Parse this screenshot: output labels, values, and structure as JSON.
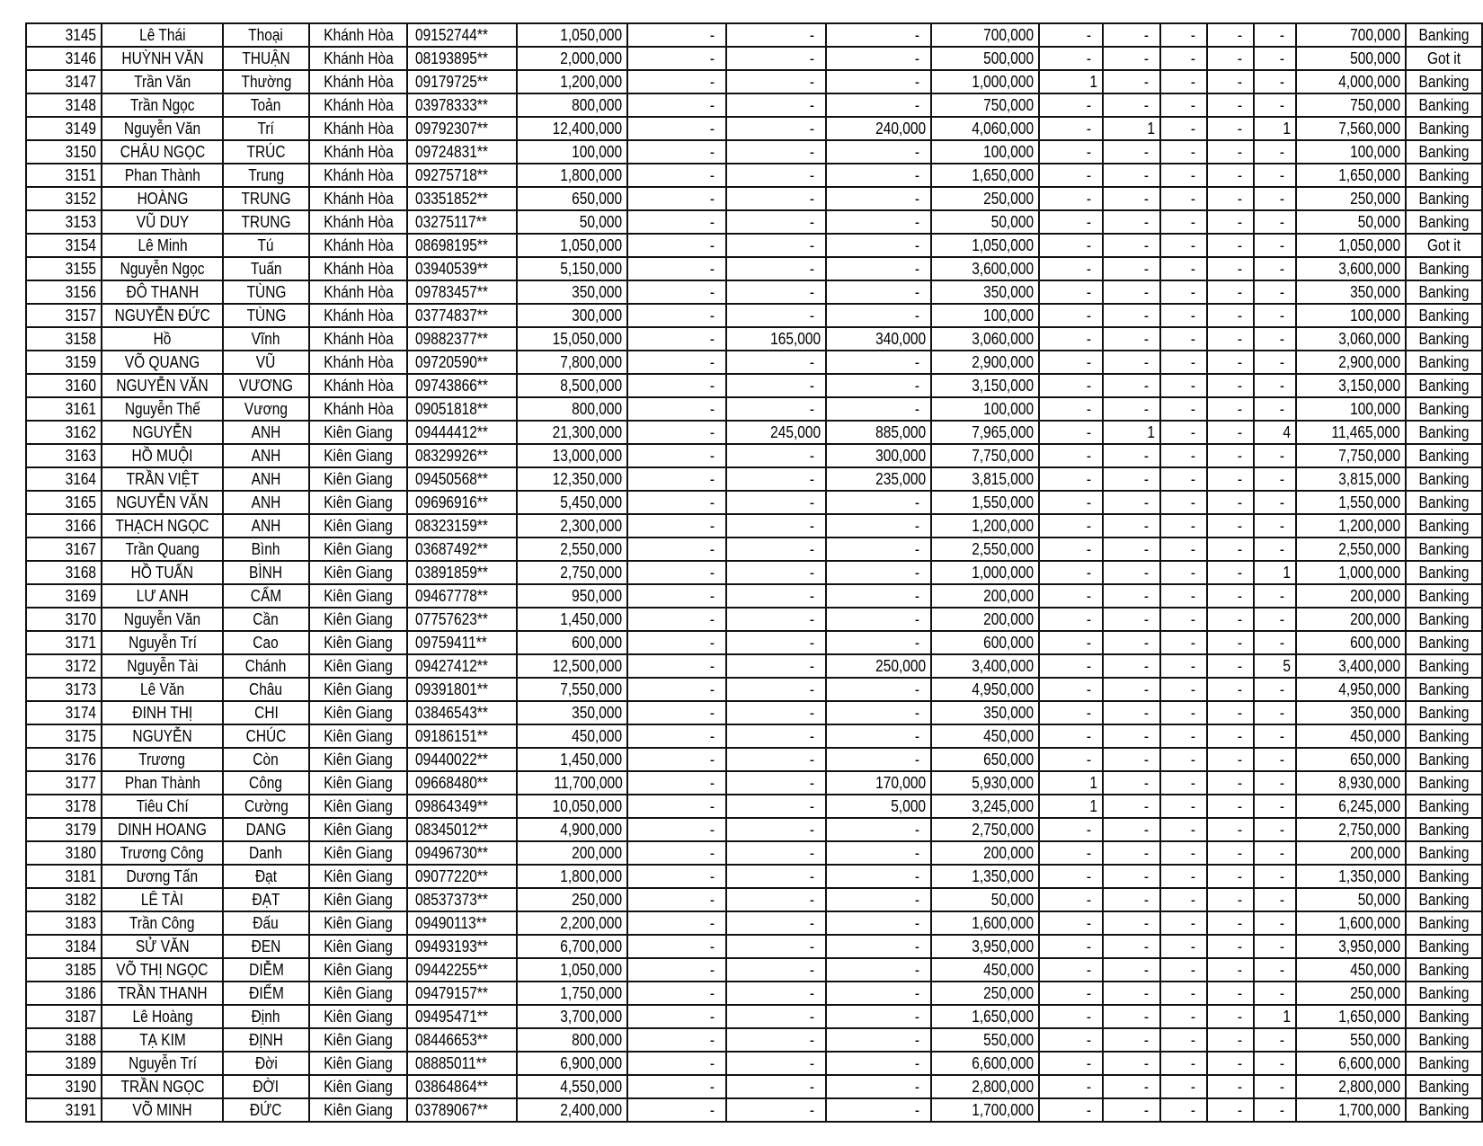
{
  "rows": [
    [
      "3145",
      "Lê Thái",
      "Thoại",
      "Khánh Hòa",
      "09152744**",
      "1,050,000",
      "-",
      "-",
      "-",
      "700,000",
      "-",
      "-",
      "-",
      "-",
      "-",
      "700,000",
      "Banking"
    ],
    [
      "3146",
      "HUỲNH VĂN",
      "THUẬN",
      "Khánh Hòa",
      "08193895**",
      "2,000,000",
      "-",
      "-",
      "-",
      "500,000",
      "-",
      "-",
      "-",
      "-",
      "-",
      "500,000",
      "Got it"
    ],
    [
      "3147",
      "Trần Văn",
      "Thường",
      "Khánh Hòa",
      "09179725**",
      "1,200,000",
      "-",
      "-",
      "-",
      "1,000,000",
      "1",
      "-",
      "-",
      "-",
      "-",
      "4,000,000",
      "Banking"
    ],
    [
      "3148",
      "Trần Ngọc",
      "Toản",
      "Khánh Hòa",
      "03978333**",
      "800,000",
      "-",
      "-",
      "-",
      "750,000",
      "-",
      "-",
      "-",
      "-",
      "-",
      "750,000",
      "Banking"
    ],
    [
      "3149",
      "Nguyễn Văn",
      "Trí",
      "Khánh Hòa",
      "09792307**",
      "12,400,000",
      "-",
      "-",
      "240,000",
      "4,060,000",
      "-",
      "1",
      "-",
      "-",
      "1",
      "7,560,000",
      "Banking"
    ],
    [
      "3150",
      "CHÂU NGỌC",
      "TRÚC",
      "Khánh Hòa",
      "09724831**",
      "100,000",
      "-",
      "-",
      "-",
      "100,000",
      "-",
      "-",
      "-",
      "-",
      "-",
      "100,000",
      "Banking"
    ],
    [
      "3151",
      "Phan Thành",
      "Trung",
      "Khánh Hòa",
      "09275718**",
      "1,800,000",
      "-",
      "-",
      "-",
      "1,650,000",
      "-",
      "-",
      "-",
      "-",
      "-",
      "1,650,000",
      "Banking"
    ],
    [
      "3152",
      "HOÀNG",
      "TRUNG",
      "Khánh Hòa",
      "03351852**",
      "650,000",
      "-",
      "-",
      "-",
      "250,000",
      "-",
      "-",
      "-",
      "-",
      "-",
      "250,000",
      "Banking"
    ],
    [
      "3153",
      "VŨ DUY",
      "TRUNG",
      "Khánh Hòa",
      "03275117**",
      "50,000",
      "-",
      "-",
      "-",
      "50,000",
      "-",
      "-",
      "-",
      "-",
      "-",
      "50,000",
      "Banking"
    ],
    [
      "3154",
      "Lê Minh",
      "Tú",
      "Khánh Hòa",
      "08698195**",
      "1,050,000",
      "-",
      "-",
      "-",
      "1,050,000",
      "-",
      "-",
      "-",
      "-",
      "-",
      "1,050,000",
      "Got it"
    ],
    [
      "3155",
      "Nguyễn Ngọc",
      "Tuấn",
      "Khánh Hòa",
      "03940539**",
      "5,150,000",
      "-",
      "-",
      "-",
      "3,600,000",
      "-",
      "-",
      "-",
      "-",
      "-",
      "3,600,000",
      "Banking"
    ],
    [
      "3156",
      "ĐÔ THANH",
      "TÙNG",
      "Khánh Hòa",
      "09783457**",
      "350,000",
      "-",
      "-",
      "-",
      "350,000",
      "-",
      "-",
      "-",
      "-",
      "-",
      "350,000",
      "Banking"
    ],
    [
      "3157",
      "NGUYỄN ĐỨC",
      "TÙNG",
      "Khánh Hòa",
      "03774837**",
      "300,000",
      "-",
      "-",
      "-",
      "100,000",
      "-",
      "-",
      "-",
      "-",
      "-",
      "100,000",
      "Banking"
    ],
    [
      "3158",
      "Hồ",
      "Vĩnh",
      "Khánh Hòa",
      "09882377**",
      "15,050,000",
      "-",
      "165,000",
      "340,000",
      "3,060,000",
      "-",
      "-",
      "-",
      "-",
      "-",
      "3,060,000",
      "Banking"
    ],
    [
      "3159",
      "VÕ QUANG",
      "VŨ",
      "Khánh Hòa",
      "09720590**",
      "7,800,000",
      "-",
      "-",
      "-",
      "2,900,000",
      "-",
      "-",
      "-",
      "-",
      "-",
      "2,900,000",
      "Banking"
    ],
    [
      "3160",
      "NGUYỄN VĂN",
      "VƯƠNG",
      "Khánh Hòa",
      "09743866**",
      "8,500,000",
      "-",
      "-",
      "-",
      "3,150,000",
      "-",
      "-",
      "-",
      "-",
      "-",
      "3,150,000",
      "Banking"
    ],
    [
      "3161",
      "Nguyễn Thế",
      "Vương",
      "Khánh Hòa",
      "09051818**",
      "800,000",
      "-",
      "-",
      "-",
      "100,000",
      "-",
      "-",
      "-",
      "-",
      "-",
      "100,000",
      "Banking"
    ],
    [
      "3162",
      "NGUYỄN",
      "ANH",
      "Kiên Giang",
      "09444412**",
      "21,300,000",
      "-",
      "245,000",
      "885,000",
      "7,965,000",
      "-",
      "1",
      "-",
      "-",
      "4",
      "11,465,000",
      "Banking"
    ],
    [
      "3163",
      "HỒ MUỘI",
      "ANH",
      "Kiên Giang",
      "08329926**",
      "13,000,000",
      "-",
      "-",
      "300,000",
      "7,750,000",
      "-",
      "-",
      "-",
      "-",
      "-",
      "7,750,000",
      "Banking"
    ],
    [
      "3164",
      "TRẦN VIỆT",
      "ANH",
      "Kiên Giang",
      "09450568**",
      "12,350,000",
      "-",
      "-",
      "235,000",
      "3,815,000",
      "-",
      "-",
      "-",
      "-",
      "-",
      "3,815,000",
      "Banking"
    ],
    [
      "3165",
      "NGUYỄN VĂN",
      "ANH",
      "Kiên Giang",
      "09696916**",
      "5,450,000",
      "-",
      "-",
      "-",
      "1,550,000",
      "-",
      "-",
      "-",
      "-",
      "-",
      "1,550,000",
      "Banking"
    ],
    [
      "3166",
      "THẠCH NGỌC",
      "ANH",
      "Kiên Giang",
      "08323159**",
      "2,300,000",
      "-",
      "-",
      "-",
      "1,200,000",
      "-",
      "-",
      "-",
      "-",
      "-",
      "1,200,000",
      "Banking"
    ],
    [
      "3167",
      "Trần Quang",
      "Bình",
      "Kiên Giang",
      "03687492**",
      "2,550,000",
      "-",
      "-",
      "-",
      "2,550,000",
      "-",
      "-",
      "-",
      "-",
      "-",
      "2,550,000",
      "Banking"
    ],
    [
      "3168",
      "HỒ TUẤN",
      "BÌNH",
      "Kiên Giang",
      "03891859**",
      "2,750,000",
      "-",
      "-",
      "-",
      "1,000,000",
      "-",
      "-",
      "-",
      "-",
      "1",
      "1,000,000",
      "Banking"
    ],
    [
      "3169",
      "LƯ ANH",
      "CẨM",
      "Kiên Giang",
      "09467778**",
      "950,000",
      "-",
      "-",
      "-",
      "200,000",
      "-",
      "-",
      "-",
      "-",
      "-",
      "200,000",
      "Banking"
    ],
    [
      "3170",
      "Nguyễn Văn",
      "Cần",
      "Kiên Giang",
      "07757623**",
      "1,450,000",
      "-",
      "-",
      "-",
      "200,000",
      "-",
      "-",
      "-",
      "-",
      "-",
      "200,000",
      "Banking"
    ],
    [
      "3171",
      "Nguyễn Trí",
      "Cao",
      "Kiên Giang",
      "09759411**",
      "600,000",
      "-",
      "-",
      "-",
      "600,000",
      "-",
      "-",
      "-",
      "-",
      "-",
      "600,000",
      "Banking"
    ],
    [
      "3172",
      "Nguyễn Tài",
      "Chánh",
      "Kiên Giang",
      "09427412**",
      "12,500,000",
      "-",
      "-",
      "250,000",
      "3,400,000",
      "-",
      "-",
      "-",
      "-",
      "5",
      "3,400,000",
      "Banking"
    ],
    [
      "3173",
      "Lê Văn",
      "Châu",
      "Kiên Giang",
      "09391801**",
      "7,550,000",
      "-",
      "-",
      "-",
      "4,950,000",
      "-",
      "-",
      "-",
      "-",
      "-",
      "4,950,000",
      "Banking"
    ],
    [
      "3174",
      "ĐINH THỊ",
      "CHI",
      "Kiên Giang",
      "03846543**",
      "350,000",
      "-",
      "-",
      "-",
      "350,000",
      "-",
      "-",
      "-",
      "-",
      "-",
      "350,000",
      "Banking"
    ],
    [
      "3175",
      "NGUYỄN",
      "CHÚC",
      "Kiên Giang",
      "09186151**",
      "450,000",
      "-",
      "-",
      "-",
      "450,000",
      "-",
      "-",
      "-",
      "-",
      "-",
      "450,000",
      "Banking"
    ],
    [
      "3176",
      "Trương",
      "Còn",
      "Kiên Giang",
      "09440022**",
      "1,450,000",
      "-",
      "-",
      "-",
      "650,000",
      "-",
      "-",
      "-",
      "-",
      "-",
      "650,000",
      "Banking"
    ],
    [
      "3177",
      "Phan Thành",
      "Công",
      "Kiên Giang",
      "09668480**",
      "11,700,000",
      "-",
      "-",
      "170,000",
      "5,930,000",
      "1",
      "-",
      "-",
      "-",
      "-",
      "8,930,000",
      "Banking"
    ],
    [
      "3178",
      "Tiêu Chí",
      "Cường",
      "Kiên Giang",
      "09864349**",
      "10,050,000",
      "-",
      "-",
      "5,000",
      "3,245,000",
      "1",
      "-",
      "-",
      "-",
      "-",
      "6,245,000",
      "Banking"
    ],
    [
      "3179",
      "DINH HOANG",
      "DANG",
      "Kiên Giang",
      "08345012**",
      "4,900,000",
      "-",
      "-",
      "-",
      "2,750,000",
      "-",
      "-",
      "-",
      "-",
      "-",
      "2,750,000",
      "Banking"
    ],
    [
      "3180",
      "Trương Công",
      "Danh",
      "Kiên Giang",
      "09496730**",
      "200,000",
      "-",
      "-",
      "-",
      "200,000",
      "-",
      "-",
      "-",
      "-",
      "-",
      "200,000",
      "Banking"
    ],
    [
      "3181",
      "Dương Tấn",
      "Đạt",
      "Kiên Giang",
      "09077220**",
      "1,800,000",
      "-",
      "-",
      "-",
      "1,350,000",
      "-",
      "-",
      "-",
      "-",
      "-",
      "1,350,000",
      "Banking"
    ],
    [
      "3182",
      "LÊ TÀI",
      "ĐẠT",
      "Kiên Giang",
      "08537373**",
      "250,000",
      "-",
      "-",
      "-",
      "50,000",
      "-",
      "-",
      "-",
      "-",
      "-",
      "50,000",
      "Banking"
    ],
    [
      "3183",
      "Trần Công",
      "Đấu",
      "Kiên Giang",
      "09490113**",
      "2,200,000",
      "-",
      "-",
      "-",
      "1,600,000",
      "-",
      "-",
      "-",
      "-",
      "-",
      "1,600,000",
      "Banking"
    ],
    [
      "3184",
      "SỬ VĂN",
      "ĐEN",
      "Kiên Giang",
      "09493193**",
      "6,700,000",
      "-",
      "-",
      "-",
      "3,950,000",
      "-",
      "-",
      "-",
      "-",
      "-",
      "3,950,000",
      "Banking"
    ],
    [
      "3185",
      "VÕ THỊ NGỌC",
      "DIỄM",
      "Kiên Giang",
      "09442255**",
      "1,050,000",
      "-",
      "-",
      "-",
      "450,000",
      "-",
      "-",
      "-",
      "-",
      "-",
      "450,000",
      "Banking"
    ],
    [
      "3186",
      "TRẦN THANH",
      "ĐIỂM",
      "Kiên Giang",
      "09479157**",
      "1,750,000",
      "-",
      "-",
      "-",
      "250,000",
      "-",
      "-",
      "-",
      "-",
      "-",
      "250,000",
      "Banking"
    ],
    [
      "3187",
      "Lê Hoàng",
      "Định",
      "Kiên Giang",
      "09495471**",
      "3,700,000",
      "-",
      "-",
      "-",
      "1,650,000",
      "-",
      "-",
      "-",
      "-",
      "1",
      "1,650,000",
      "Banking"
    ],
    [
      "3188",
      "TẠ KIM",
      "ĐỊNH",
      "Kiên Giang",
      "08446653**",
      "800,000",
      "-",
      "-",
      "-",
      "550,000",
      "-",
      "-",
      "-",
      "-",
      "-",
      "550,000",
      "Banking"
    ],
    [
      "3189",
      "Nguyễn Trí",
      "Đời",
      "Kiên Giang",
      "08885011**",
      "6,900,000",
      "-",
      "-",
      "-",
      "6,600,000",
      "-",
      "-",
      "-",
      "-",
      "-",
      "6,600,000",
      "Banking"
    ],
    [
      "3190",
      "TRẦN NGỌC",
      "ĐỜI",
      "Kiên Giang",
      "03864864**",
      "4,550,000",
      "-",
      "-",
      "-",
      "2,800,000",
      "-",
      "-",
      "-",
      "-",
      "-",
      "2,800,000",
      "Banking"
    ],
    [
      "3191",
      "VÕ MINH",
      "ĐỨC",
      "Kiên Giang",
      "03789067**",
      "2,400,000",
      "-",
      "-",
      "-",
      "1,700,000",
      "-",
      "-",
      "-",
      "-",
      "-",
      "1,700,000",
      "Banking"
    ]
  ]
}
